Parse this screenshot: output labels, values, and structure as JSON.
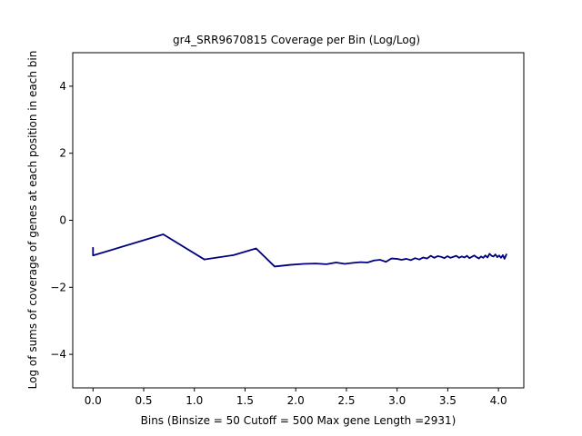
{
  "chart_data": {
    "type": "line",
    "title": "gr4_SRR9670815 Coverage per Bin (Log/Log)",
    "xlabel": "Bins  (Binsize = 50 Cutoff = 500 Max gene Length =2931)",
    "ylabel": "Log of sums of coverage of genes at each position in each bin",
    "xlim": [
      -0.2,
      4.25
    ],
    "ylim": [
      -5,
      5
    ],
    "x_ticks": [
      0.0,
      0.5,
      1.0,
      1.5,
      2.0,
      2.5,
      3.0,
      3.5,
      4.0
    ],
    "x_tick_labels": [
      "0.0",
      "0.5",
      "1.0",
      "1.5",
      "2.0",
      "2.5",
      "3.0",
      "3.5",
      "4.0"
    ],
    "y_ticks": [
      -4,
      -2,
      0,
      2,
      4
    ],
    "y_tick_labels": [
      "−4",
      "−2",
      "0",
      "2",
      "4"
    ],
    "grid": false,
    "line_color": "#000080",
    "series": [
      {
        "x": [
          0.0,
          0.0,
          0.693,
          1.099,
          1.386,
          1.609,
          1.792,
          1.946,
          2.079,
          2.197,
          2.303,
          2.398,
          2.485,
          2.565,
          2.639,
          2.708,
          2.773,
          2.833,
          2.89,
          2.944,
          2.996,
          3.045,
          3.091,
          3.135,
          3.178,
          3.219,
          3.258,
          3.296,
          3.332,
          3.367,
          3.401,
          3.434,
          3.466,
          3.497,
          3.526,
          3.555,
          3.584,
          3.611,
          3.638,
          3.664,
          3.689,
          3.714,
          3.738,
          3.761,
          3.784,
          3.807,
          3.829,
          3.85,
          3.871,
          3.892,
          3.912,
          3.932,
          3.951,
          3.97,
          3.989,
          4.007,
          4.025,
          4.043,
          4.06,
          4.078
        ],
        "values": [
          -0.82,
          -1.05,
          -0.42,
          -1.17,
          -1.04,
          -0.84,
          -1.38,
          -1.33,
          -1.3,
          -1.29,
          -1.31,
          -1.26,
          -1.3,
          -1.27,
          -1.25,
          -1.26,
          -1.2,
          -1.18,
          -1.24,
          -1.14,
          -1.15,
          -1.18,
          -1.15,
          -1.19,
          -1.13,
          -1.17,
          -1.11,
          -1.14,
          -1.06,
          -1.12,
          -1.07,
          -1.09,
          -1.13,
          -1.07,
          -1.12,
          -1.09,
          -1.06,
          -1.12,
          -1.08,
          -1.11,
          -1.06,
          -1.13,
          -1.09,
          -1.05,
          -1.1,
          -1.14,
          -1.08,
          -1.12,
          -1.05,
          -1.11,
          -1.0,
          -1.06,
          -1.08,
          -1.02,
          -1.1,
          -1.05,
          -1.12,
          -1.04,
          -1.15,
          -1.02
        ]
      }
    ]
  }
}
